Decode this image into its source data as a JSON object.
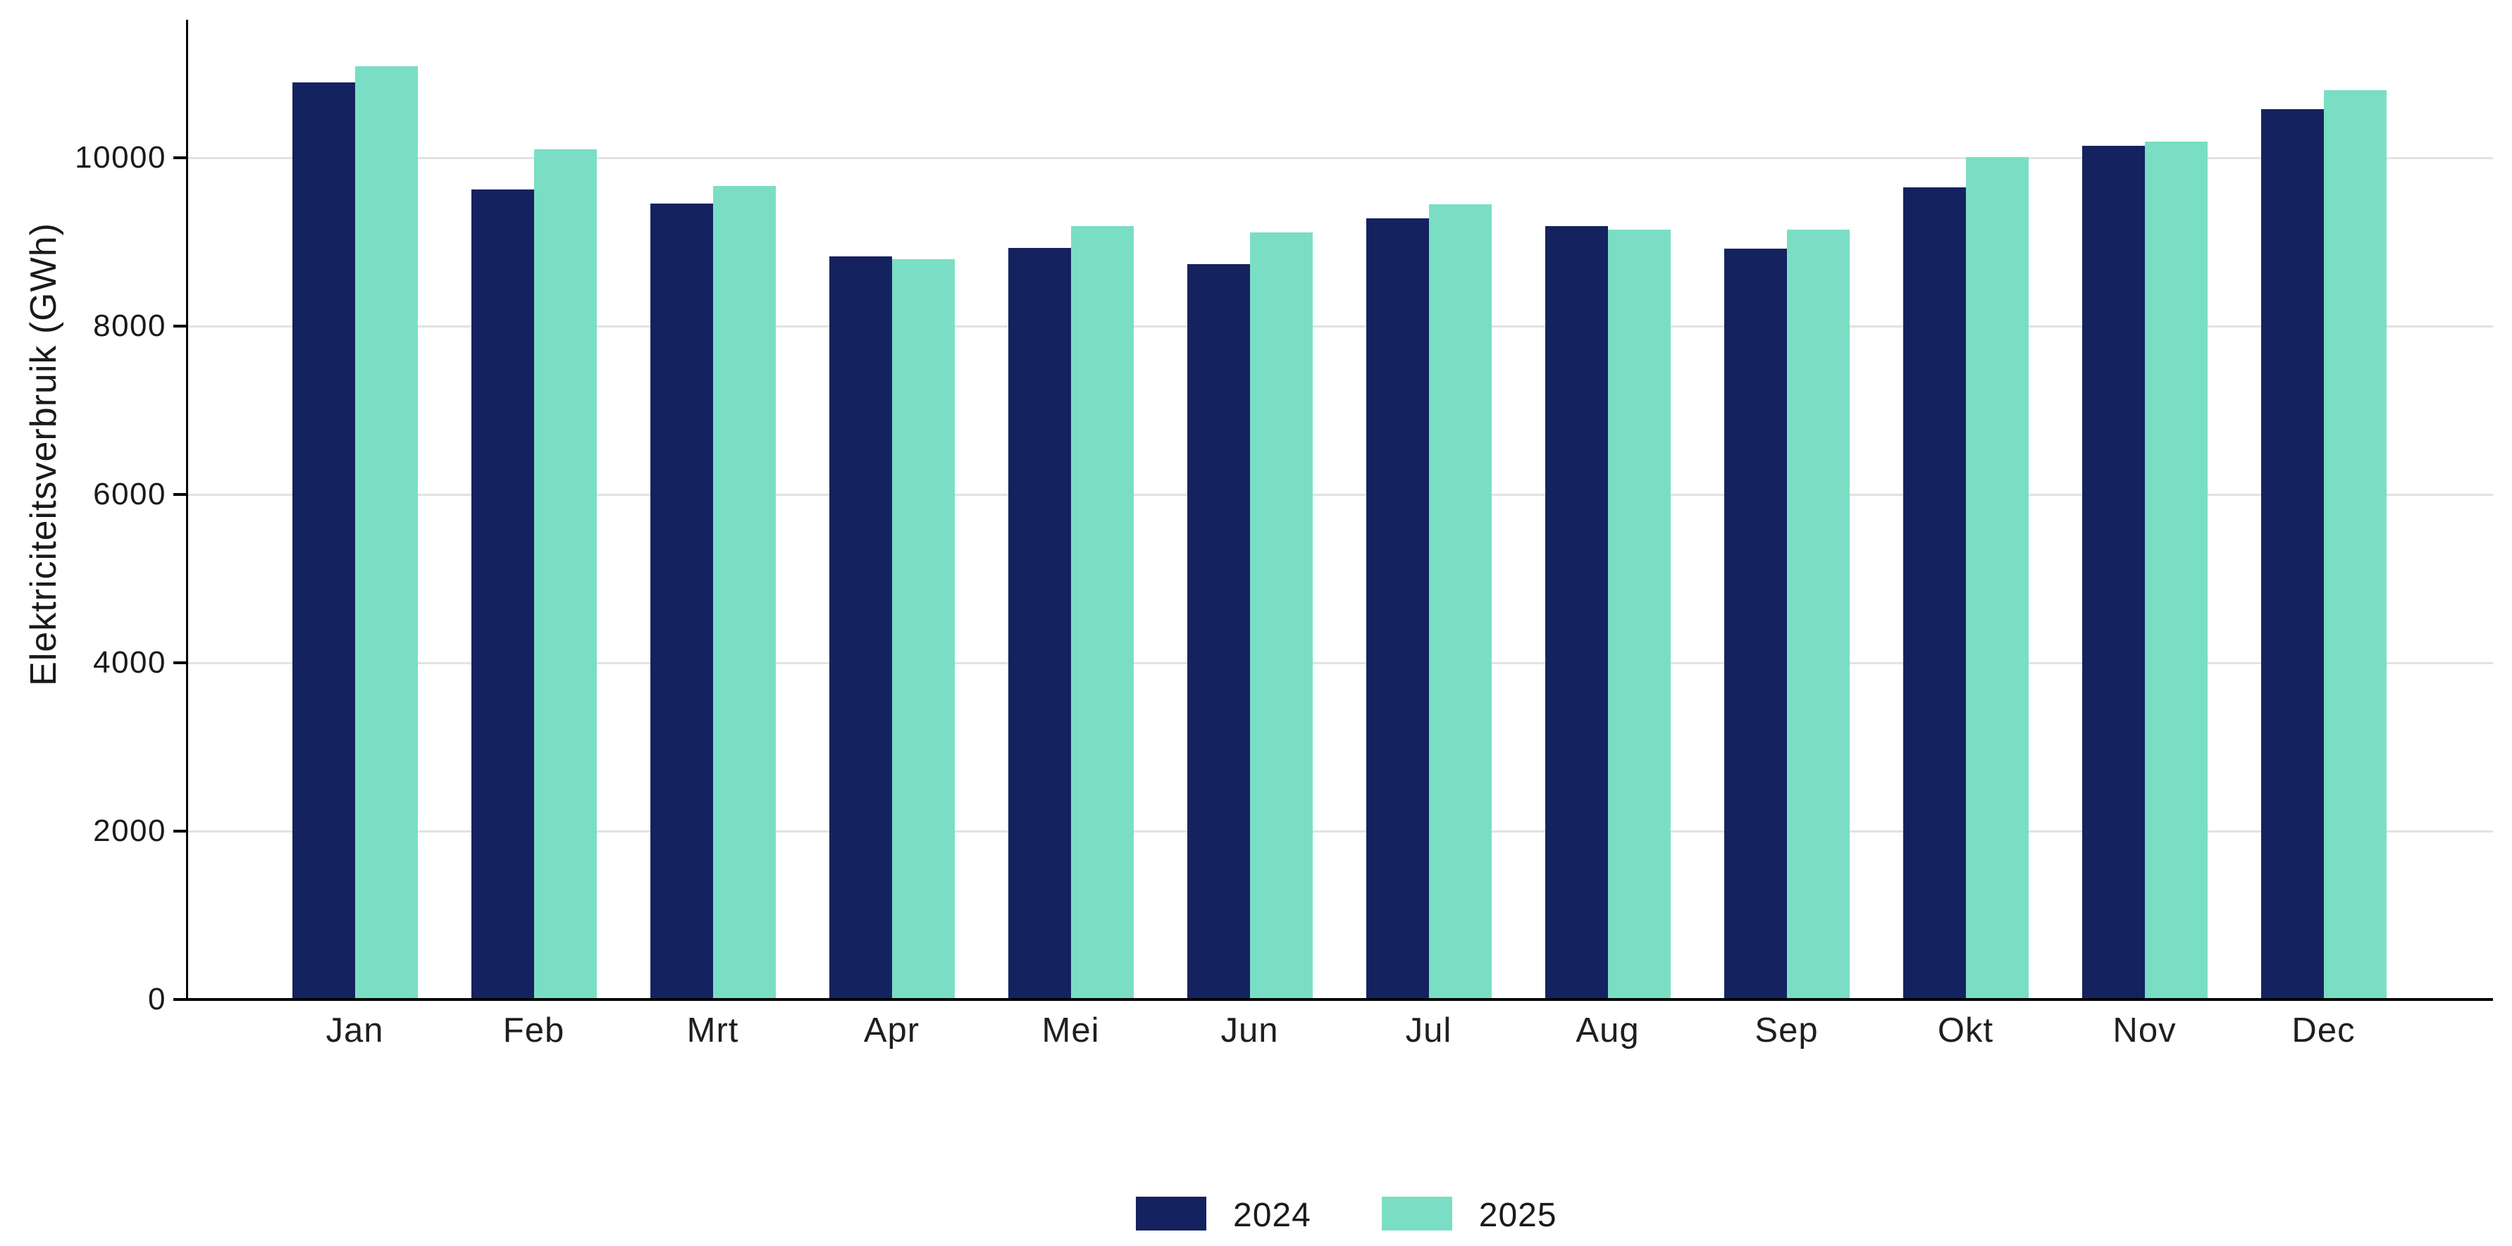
{
  "chart": {
    "y_axis_title": "Elektriciteitsverbruik (GWh)"
  },
  "chart_data": {
    "type": "bar",
    "title": "",
    "xlabel": "",
    "ylabel": "Elektriciteitsverbruik (GWh)",
    "categories": [
      "Jan",
      "Feb",
      "Mrt",
      "Apr",
      "Mei",
      "Jun",
      "Jul",
      "Aug",
      "Sep",
      "Okt",
      "Nov",
      "Dec"
    ],
    "series": [
      {
        "name": "2024",
        "color": "#152260",
        "values": [
          10895,
          9620,
          9460,
          8830,
          8930,
          8740,
          9280,
          9190,
          8920,
          9650,
          10140,
          10580
        ]
      },
      {
        "name": "2025",
        "color": "#7adec5",
        "values": [
          11090,
          10100,
          9665,
          8795,
          9190,
          9110,
          9450,
          9150,
          9150,
          10010,
          10190,
          10800
        ]
      }
    ],
    "ylim": [
      0,
      11700
    ],
    "yticks": [
      0,
      2000,
      4000,
      6000,
      8000,
      10000
    ],
    "grid": "horizontal-only",
    "gridline_color": "#e2e2e2",
    "axis_color": "#000000",
    "text_color": "#1a1a1a",
    "legend_position": "bottom-center",
    "legend_labels": [
      "2024",
      "2025"
    ]
  }
}
